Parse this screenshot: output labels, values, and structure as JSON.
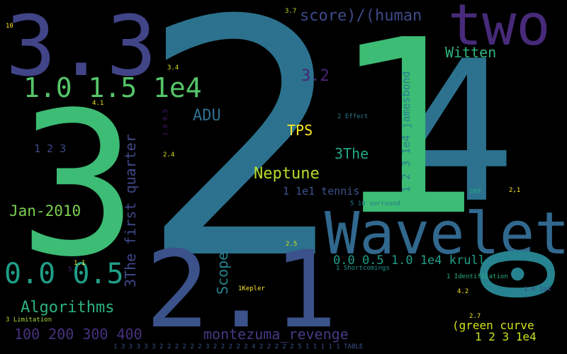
{
  "words": [
    {
      "text": "2",
      "color": "#2c728e"
    },
    {
      "text": "4",
      "color": "#2c728e"
    },
    {
      "text": "1",
      "color": "#3cbc74"
    },
    {
      "text": "3",
      "color": "#3cbc74"
    },
    {
      "text": "3.3",
      "color": "#414487"
    },
    {
      "text": "two",
      "color": "#472a7a"
    },
    {
      "text": "Wavelet",
      "color": "#31688e"
    },
    {
      "text": "2.1",
      "color": "#3b528b"
    },
    {
      "text": "0",
      "color": "#26838f"
    },
    {
      "text": "1.0  1.5  1e4",
      "color": "#54c568"
    },
    {
      "text": "score)/(human",
      "color": "#3e4a89"
    },
    {
      "text": "Witten",
      "color": "#2fb47c"
    },
    {
      "text": "3.2",
      "color": "#482576"
    },
    {
      "text": "ADU",
      "color": "#2e6f8e"
    },
    {
      "text": "TPS",
      "color": "#fde725"
    },
    {
      "text": "3The",
      "color": "#22a884"
    },
    {
      "text": "Neptune",
      "color": "#b5de2b"
    },
    {
      "text": "1  1e1  tennis",
      "color": "#3b528b"
    },
    {
      "text": "Jan-2010",
      "color": "#7ad151"
    },
    {
      "text": "0.0  0.5",
      "color": "#1f9f88"
    },
    {
      "text": "Algorithms",
      "color": "#2db27d"
    },
    {
      "text": "100  200  300  400",
      "color": "#46327e"
    },
    {
      "text": "montezuma_revenge",
      "color": "#443a83"
    },
    {
      "text": "0.0  0.5  1.0  1e4  krull",
      "color": "#1f9e89"
    },
    {
      "text": "(green curve",
      "color": "#d2e21b"
    },
    {
      "text": "1  2  3  1e4",
      "color": "#c8e020"
    },
    {
      "text": "1  2  3",
      "color": "#3e4989"
    },
    {
      "text": "3The first quarter",
      "color": "#3f4889"
    },
    {
      "text": "Scope",
      "color": "#26828e"
    },
    {
      "text": "1  2  3  1e4  jamesbond",
      "color": "#287d8e"
    },
    {
      "text": "1  3  3  3  3  3  2  2  2  2  2  2  3  2  2  2  2  2  4  2  2  2  2  2  5  1  1  1  1  1  TABLE",
      "color": "#3b528b"
    },
    {
      "text": "3.7",
      "color": "#b8de29"
    },
    {
      "text": "10",
      "color": "#fde725"
    },
    {
      "text": "3.4",
      "color": "#dde318"
    },
    {
      "text": "4.1",
      "color": "#e5e419"
    },
    {
      "text": "1.0  0.5",
      "color": "#48186a"
    },
    {
      "text": "2  Effect",
      "color": "#2a788e"
    },
    {
      "text": "2.4",
      "color": "#d8e219"
    },
    {
      "text": "289",
      "color": "#25ab82"
    },
    {
      "text": "2,1",
      "color": "#fde725"
    },
    {
      "text": "5  10  surround",
      "color": "#2a788e"
    },
    {
      "text": "2.5",
      "color": "#cae11f"
    },
    {
      "text": "1.1",
      "color": "#fde725"
    },
    {
      "text": "5",
      "color": "#482979"
    },
    {
      "text": "1  Shortcomings",
      "color": "#20928c"
    },
    {
      "text": "1  Identification",
      "color": "#29af7f"
    },
    {
      "text": "1Kepler",
      "color": "#fde725"
    },
    {
      "text": "4.2",
      "color": "#f1e51d"
    },
    {
      "text": "1.0  1e4",
      "color": "#3e4a89"
    },
    {
      "text": "3  Limitation",
      "color": "#a8db34"
    },
    {
      "text": "2.7",
      "color": "#f1e51d"
    }
  ]
}
